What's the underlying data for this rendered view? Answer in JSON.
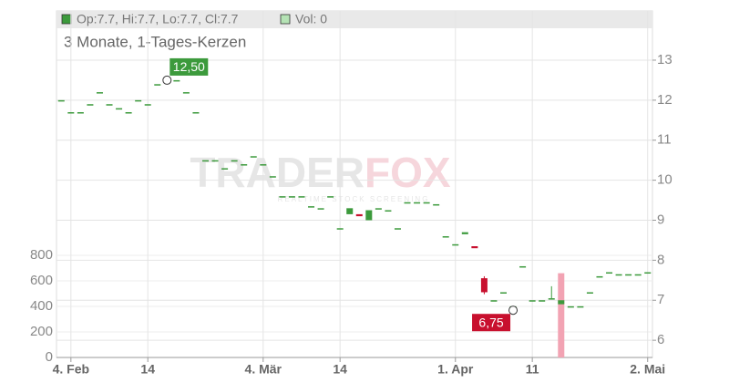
{
  "chart_data": {
    "type": "candlestick",
    "legend_ohlc": "Op:7.7, Hi:7.7, Lo:7.7, Cl:7.7",
    "legend_volume": "Vol: 0",
    "subtitle": "3 Monate, 1-Tages-Kerzen",
    "watermark": {
      "brand": "TRADER",
      "brand_accent": "FOX",
      "tagline": "REALTIME STOCK SCREENING"
    },
    "categories": [
      null,
      "4. Feb",
      null,
      null,
      null,
      null,
      null,
      null,
      null,
      "14",
      null,
      null,
      null,
      null,
      null,
      null,
      null,
      null,
      null,
      null,
      null,
      "4. Mär",
      null,
      null,
      null,
      null,
      null,
      null,
      null,
      "14",
      null,
      null,
      null,
      null,
      null,
      null,
      null,
      null,
      null,
      null,
      null,
      "1. Apr",
      null,
      null,
      null,
      null,
      null,
      null,
      null,
      "11",
      null,
      null,
      null,
      null,
      null,
      null,
      null,
      null,
      null,
      null,
      null,
      "2. Mai"
    ],
    "open": [
      12,
      11.7,
      11.7,
      11.9,
      12.2,
      11.9,
      11.8,
      11.7,
      12,
      11.9,
      12.4,
      12.5,
      12.5,
      12.2,
      11.7,
      10.5,
      10.5,
      10.3,
      10.5,
      10.4,
      10.6,
      10.4,
      10.1,
      9.6,
      9.6,
      9.6,
      9.35,
      9.3,
      9.6,
      8.8,
      9.15,
      9.15,
      9.0,
      9.3,
      9.25,
      8.8,
      9.45,
      9.45,
      9.45,
      9.4,
      8.6,
      8.4,
      8.65,
      8.35,
      7.55,
      7.0,
      7.2,
      6.85,
      7.85,
      7.0,
      7.0,
      7.05,
      6.9,
      6.85,
      6.85,
      7.2,
      7.6,
      7.7,
      7.65,
      7.65,
      7.65,
      7.7
    ],
    "high": [
      12,
      11.7,
      11.7,
      11.9,
      12.2,
      11.9,
      11.8,
      11.7,
      12,
      11.9,
      12.4,
      12.5,
      12.5,
      12.2,
      11.7,
      10.5,
      10.5,
      10.3,
      10.5,
      10.4,
      10.6,
      10.4,
      10.1,
      9.6,
      9.6,
      9.6,
      9.35,
      9.3,
      9.6,
      8.8,
      9.3,
      9.15,
      9.25,
      9.3,
      9.25,
      8.8,
      9.45,
      9.45,
      9.45,
      9.4,
      8.6,
      8.4,
      8.7,
      8.35,
      7.6,
      7.0,
      7.2,
      6.85,
      7.85,
      7.0,
      7.0,
      7.35,
      7.0,
      6.85,
      6.85,
      7.2,
      7.6,
      7.7,
      7.65,
      7.65,
      7.65,
      7.7
    ],
    "low": [
      12,
      11.7,
      11.7,
      11.9,
      12.2,
      11.9,
      11.8,
      11.7,
      12,
      11.9,
      12.4,
      12.5,
      12.5,
      12.2,
      11.7,
      10.5,
      10.5,
      10.3,
      10.5,
      10.4,
      10.6,
      10.4,
      10.1,
      9.6,
      9.6,
      9.6,
      9.35,
      9.3,
      9.6,
      8.8,
      9.15,
      9.1,
      9.0,
      9.3,
      9.25,
      8.8,
      9.45,
      9.45,
      9.45,
      9.4,
      8.6,
      8.4,
      8.65,
      8.3,
      7.15,
      7.0,
      7.2,
      6.75,
      7.85,
      7.0,
      7.0,
      7.05,
      6.9,
      6.85,
      6.85,
      7.2,
      7.6,
      7.7,
      7.65,
      7.65,
      7.65,
      7.7
    ],
    "close": [
      12,
      11.7,
      11.7,
      11.9,
      12.2,
      11.9,
      11.8,
      11.7,
      12,
      11.9,
      12.4,
      12.5,
      12.5,
      12.2,
      11.7,
      10.5,
      10.5,
      10.3,
      10.5,
      10.4,
      10.6,
      10.4,
      10.1,
      9.6,
      9.6,
      9.6,
      9.35,
      9.3,
      9.6,
      8.8,
      9.3,
      9.1,
      9.25,
      9.3,
      9.25,
      8.8,
      9.45,
      9.45,
      9.45,
      9.4,
      8.6,
      8.4,
      8.7,
      8.3,
      7.2,
      7.0,
      7.2,
      6.85,
      7.85,
      7.0,
      7.0,
      7.05,
      7.0,
      6.85,
      6.85,
      7.2,
      7.6,
      7.7,
      7.65,
      7.65,
      7.65,
      7.7
    ],
    "volume": [
      0,
      0,
      0,
      0,
      0,
      0,
      0,
      0,
      0,
      0,
      0,
      0,
      0,
      0,
      0,
      0,
      0,
      0,
      0,
      0,
      0,
      0,
      0,
      0,
      0,
      0,
      0,
      0,
      0,
      0,
      0,
      0,
      0,
      0,
      0,
      0,
      0,
      0,
      0,
      0,
      0,
      0,
      0,
      0,
      0,
      0,
      0,
      0,
      0,
      0,
      0,
      0,
      660,
      0,
      0,
      0,
      0,
      0,
      0,
      0,
      0,
      0
    ],
    "up_color": "#3c9a3c",
    "down_color": "#c8102e",
    "volume_color": "#f2a3b3",
    "ylim": [
      5.57,
      14.23
    ],
    "yticks": [
      6,
      7,
      8,
      9,
      10,
      11,
      12,
      13
    ],
    "y2lim": [
      0,
      2714
    ],
    "y2ticks": [
      0,
      200,
      400,
      600,
      800
    ],
    "grid": true,
    "annotations": [
      {
        "label": "12,50",
        "value": 12.5,
        "category": 11
      },
      {
        "label": "6,75",
        "value": 6.75,
        "category": 47
      }
    ]
  }
}
